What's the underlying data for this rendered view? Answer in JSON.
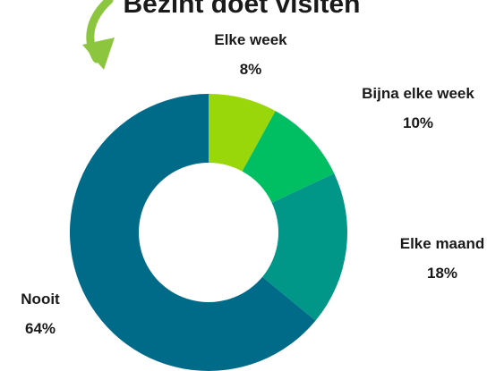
{
  "chart_data": {
    "type": "donut",
    "title": "Bezint doet visiten",
    "categories": [
      "Elke week",
      "Bijna elke week",
      "Elke maand",
      "Nooit"
    ],
    "values": [
      8,
      10,
      18,
      64
    ],
    "value_labels": [
      "8%",
      "10%",
      "18%",
      "64%"
    ],
    "colors": [
      "#99d60a",
      "#00bf63",
      "#009688",
      "#006a89"
    ]
  }
}
